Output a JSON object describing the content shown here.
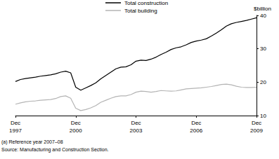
{
  "chart_data": {
    "type": "line",
    "y_label": "$billion",
    "annotations": [
      "(a) Reference year 2007–08",
      "Source: Manufacturing and Construction Section."
    ],
    "categories": [
      "Dec 1997",
      null,
      null,
      null,
      null,
      null,
      null,
      null,
      null,
      null,
      null,
      null,
      "Dec 2000",
      null,
      null,
      null,
      null,
      null,
      null,
      null,
      null,
      null,
      null,
      null,
      "Dec 2003",
      null,
      null,
      null,
      null,
      null,
      null,
      null,
      null,
      null,
      null,
      null,
      "Dec 2006",
      null,
      null,
      null,
      null,
      null,
      null,
      null,
      null,
      null,
      null,
      null,
      "Dec 2009"
    ],
    "series": [
      {
        "name": "Total construction",
        "color": "#000000",
        "values": [
          20.2,
          20.8,
          21.1,
          21.3,
          21.5,
          21.8,
          22.0,
          22.2,
          22.5,
          23.0,
          23.3,
          22.8,
          18.5,
          17.6,
          18.3,
          19.0,
          19.8,
          21.0,
          22.0,
          23.0,
          24.0,
          24.5,
          24.6,
          25.2,
          26.3,
          26.6,
          26.5,
          26.9,
          27.5,
          28.3,
          29.0,
          29.8,
          30.3,
          30.6,
          31.2,
          31.9,
          32.3,
          32.6,
          33.0,
          33.8,
          34.7,
          35.7,
          36.8,
          37.5,
          37.9,
          38.2,
          38.5,
          38.9,
          39.3
        ]
      },
      {
        "name": "Total building",
        "color": "#b4b4b4",
        "values": [
          13.4,
          13.8,
          14.1,
          14.3,
          14.4,
          14.6,
          14.7,
          14.8,
          15.1,
          15.7,
          15.9,
          15.2,
          12.2,
          11.5,
          11.8,
          12.3,
          13.0,
          14.0,
          14.6,
          15.2,
          15.7,
          15.9,
          15.9,
          16.3,
          17.0,
          17.3,
          17.2,
          17.0,
          17.2,
          17.5,
          17.4,
          17.3,
          17.4,
          17.7,
          18.0,
          18.1,
          18.2,
          18.3,
          18.5,
          18.7,
          19.0,
          19.3,
          19.4,
          19.2,
          18.8,
          18.5,
          18.4,
          18.4,
          18.5
        ]
      }
    ],
    "ylim": [
      10,
      40
    ],
    "yticks": [
      10,
      20,
      30,
      40
    ],
    "grid": false,
    "legend": "top"
  }
}
